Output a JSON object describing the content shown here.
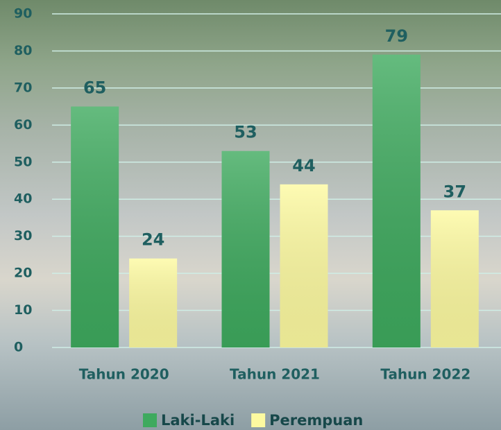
{
  "chart_data": {
    "type": "bar",
    "categories": [
      "Tahun 2020",
      "Tahun 2021",
      "Tahun 2022"
    ],
    "series": [
      {
        "name": "Laki-Laki",
        "color": "#3eaa5e",
        "values": [
          65,
          53,
          79
        ]
      },
      {
        "name": "Perempuan",
        "color": "#fdfaa0",
        "values": [
          24,
          44,
          37
        ]
      }
    ],
    "ylim": [
      0,
      90
    ],
    "yticks": [
      0,
      10,
      20,
      30,
      40,
      50,
      60,
      70,
      80,
      90
    ],
    "grid": true,
    "legend": "bottom"
  }
}
